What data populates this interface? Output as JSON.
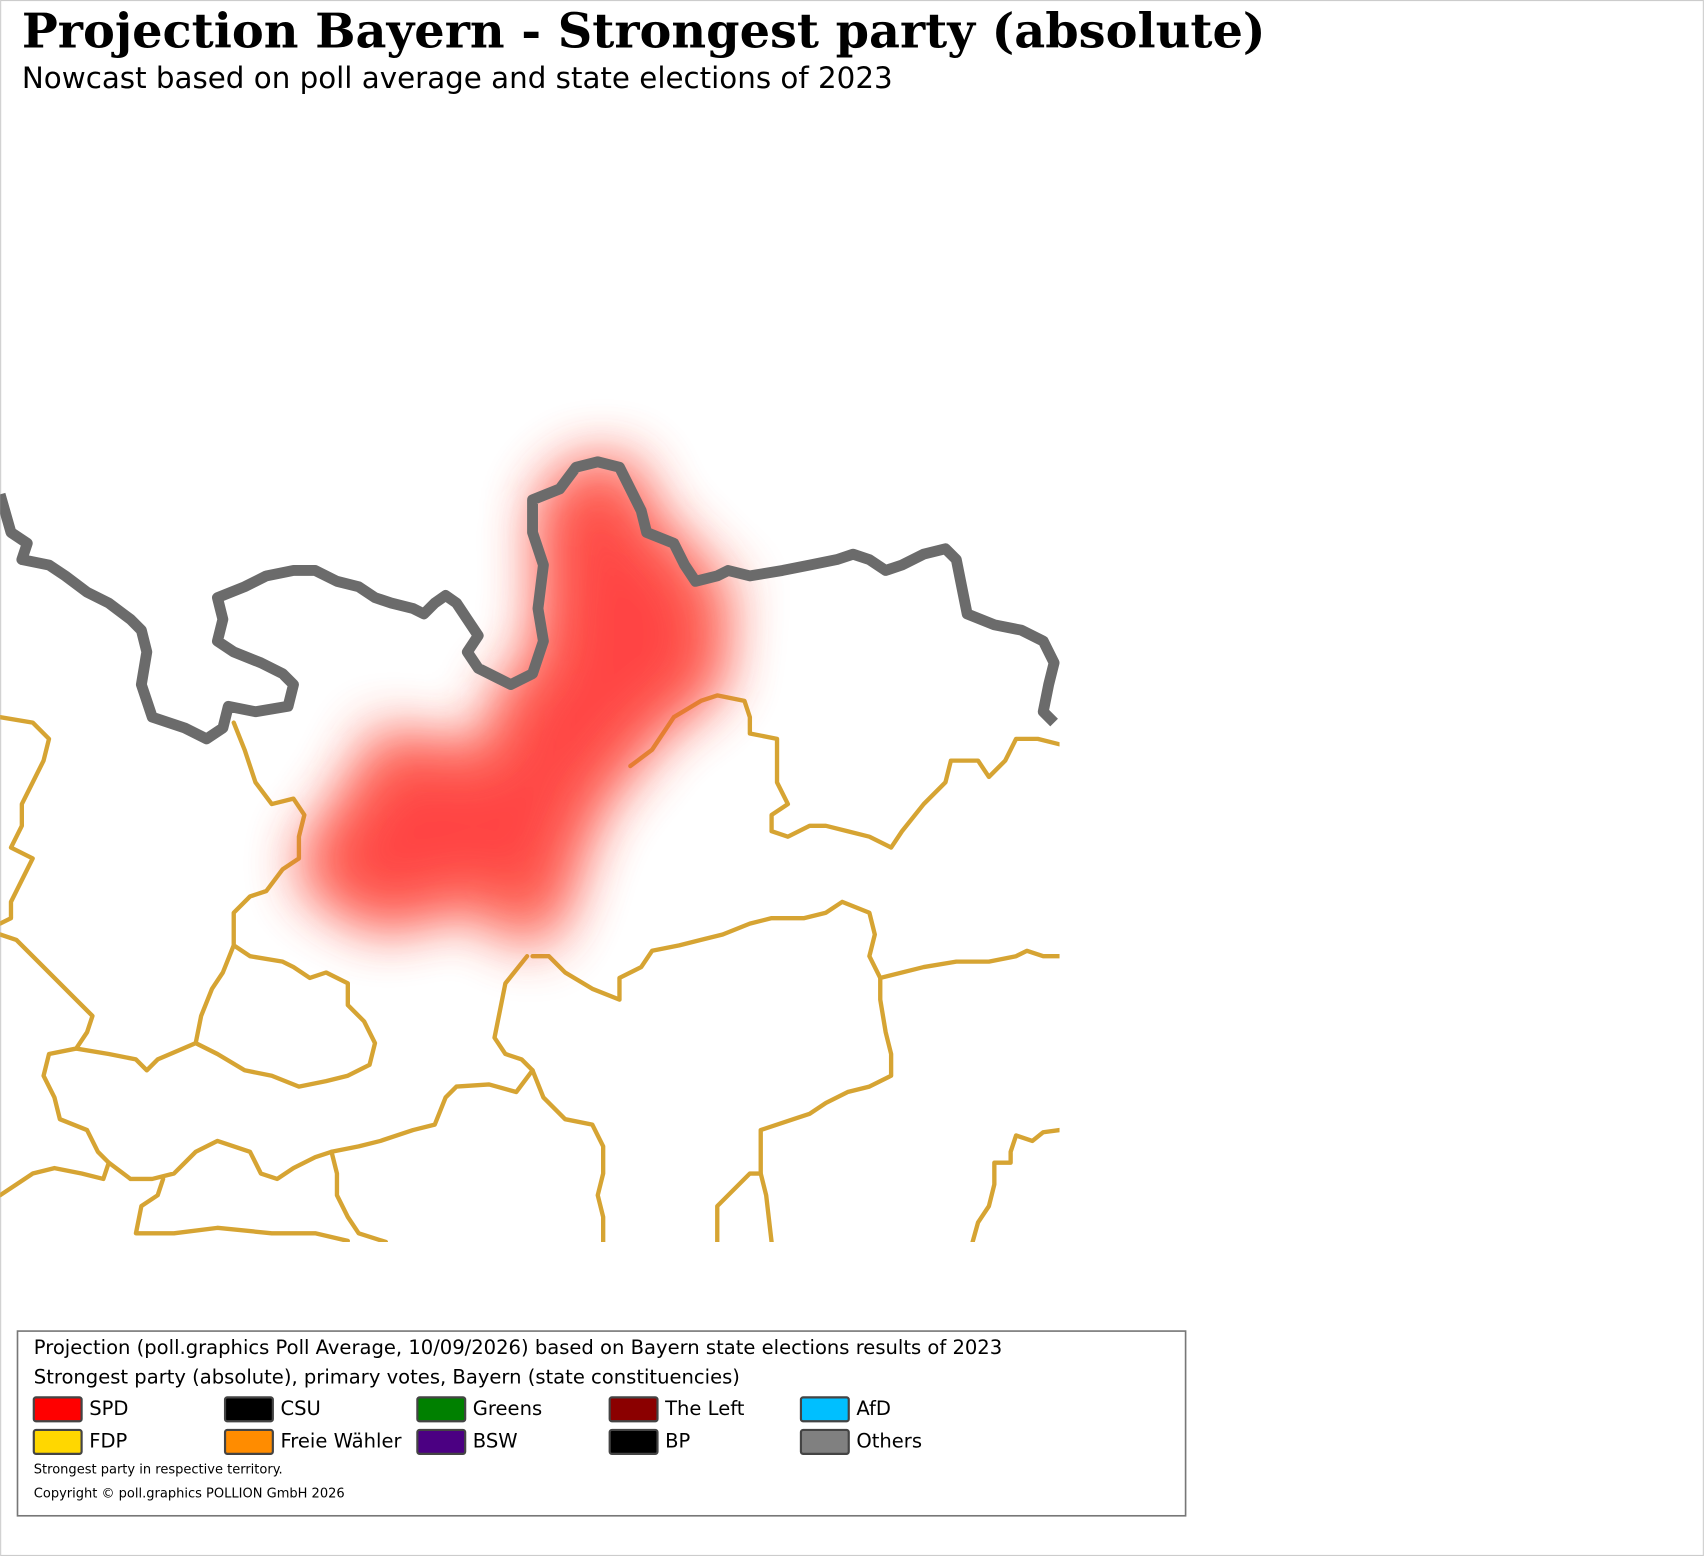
{
  "header": {
    "title": "Projection Bayern - Strongest party (absolute)",
    "subtitle": "Nowcast based on poll average and state elections of 2023"
  },
  "legend": {
    "lines": [
      "Projection (poll.graphics Poll Average, 10/09/2026) based on Bayern state elections results of 2023",
      "Strongest party (absolute), primary votes, Bayern (state constituencies)"
    ],
    "items": [
      {
        "label": "SPD",
        "color": "#ff0000"
      },
      {
        "label": "CSU",
        "color": "#000000"
      },
      {
        "label": "Greens",
        "color": "#008000"
      },
      {
        "label": "The Left",
        "color": "#8b0000"
      },
      {
        "label": "AfD",
        "color": "#00bfff"
      },
      {
        "label": "FDP",
        "color": "#ffd700"
      },
      {
        "label": "Freie Wähler",
        "color": "#ff8c00"
      },
      {
        "label": "BSW",
        "color": "#4b0082"
      },
      {
        "label": "BP",
        "color": "#000000"
      },
      {
        "label": "Others",
        "color": "#808080"
      }
    ],
    "notes": [
      "Strongest party in respective territory.",
      "Copyright © poll.graphics POLLION GmbH 2026"
    ]
  }
}
